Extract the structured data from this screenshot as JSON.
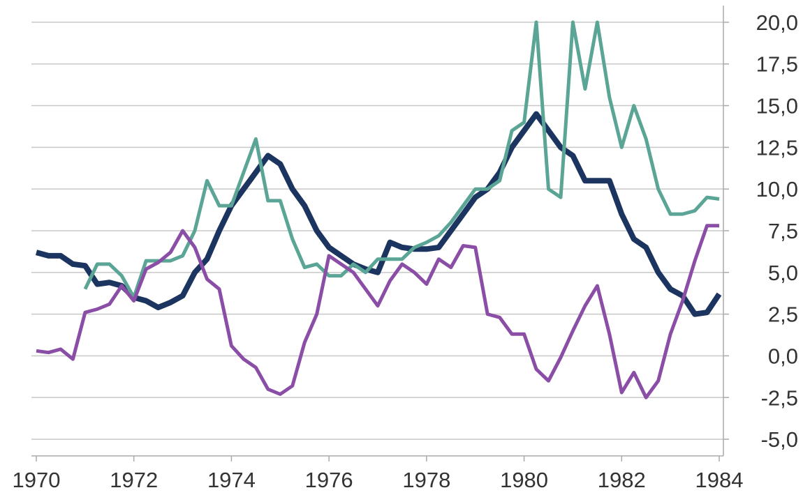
{
  "chart_data": {
    "type": "line",
    "x": [
      1970,
      1970.25,
      1970.5,
      1970.75,
      1971,
      1971.25,
      1971.5,
      1971.75,
      1972,
      1972.25,
      1972.5,
      1972.75,
      1973,
      1973.25,
      1973.5,
      1973.75,
      1974,
      1974.25,
      1974.5,
      1974.75,
      1975,
      1975.25,
      1975.5,
      1975.75,
      1976,
      1976.25,
      1976.5,
      1976.75,
      1977,
      1977.25,
      1977.5,
      1977.75,
      1978,
      1978.25,
      1978.5,
      1978.75,
      1979,
      1979.25,
      1979.5,
      1979.75,
      1980,
      1980.25,
      1980.5,
      1980.75,
      1981,
      1981.25,
      1981.5,
      1981.75,
      1982,
      1982.25,
      1982.5,
      1982.75,
      1983,
      1983.25,
      1983.5,
      1983.75,
      1984
    ],
    "series": [
      {
        "color": "#1c3560",
        "values": [
          6.2,
          6.0,
          6.0,
          5.5,
          5.4,
          4.3,
          4.4,
          4.2,
          3.5,
          3.3,
          2.9,
          3.2,
          3.6,
          5.0,
          5.8,
          7.5,
          9.0,
          10.0,
          11.0,
          12.0,
          11.5,
          10.0,
          9.0,
          7.5,
          6.5,
          6.0,
          5.5,
          5.2,
          5.0,
          6.8,
          6.5,
          6.4,
          6.4,
          6.5,
          7.5,
          8.5,
          9.5,
          10.0,
          11.0,
          12.5,
          13.5,
          14.5,
          13.5,
          12.5,
          12.0,
          10.5,
          10.5,
          10.5,
          8.5,
          7.0,
          6.5,
          5.0,
          4.0,
          3.6,
          2.5,
          2.6,
          3.7
        ]
      },
      {
        "color": "#5aa595",
        "values": [
          null,
          null,
          null,
          null,
          4.0,
          5.5,
          5.5,
          4.8,
          3.5,
          5.7,
          5.7,
          5.7,
          6.0,
          7.5,
          10.5,
          9.0,
          9.0,
          11.0,
          13.0,
          9.3,
          9.3,
          7.0,
          5.3,
          5.5,
          4.8,
          4.8,
          5.5,
          5.0,
          5.8,
          5.8,
          5.8,
          6.5,
          6.8,
          7.2,
          8.0,
          9.0,
          10.0,
          10.0,
          10.5,
          13.5,
          14.0,
          20.0,
          10.0,
          9.5,
          20.0,
          16.0,
          20.0,
          15.5,
          12.5,
          15.0,
          13.0,
          10.0,
          8.5,
          8.5,
          8.7,
          9.5,
          9.4
        ]
      },
      {
        "color": "#8b4ea6",
        "values": [
          0.3,
          0.2,
          0.4,
          -0.2,
          2.6,
          2.8,
          3.1,
          4.2,
          3.3,
          5.2,
          5.6,
          6.2,
          7.5,
          6.5,
          4.6,
          4.0,
          0.6,
          -0.2,
          -0.7,
          -2.0,
          -2.3,
          -1.8,
          0.8,
          2.5,
          6.0,
          5.5,
          5.0,
          4.0,
          3.0,
          4.5,
          5.5,
          5.0,
          4.3,
          5.8,
          5.3,
          6.6,
          6.5,
          2.5,
          2.3,
          1.3,
          1.3,
          -0.8,
          -1.5,
          -0.1,
          1.5,
          3.0,
          4.2,
          1.3,
          -2.2,
          -1.0,
          -2.5,
          -1.5,
          1.3,
          3.3,
          5.7,
          7.8,
          7.8
        ]
      }
    ],
    "xlim": [
      1970,
      1984
    ],
    "xticks": [
      1970,
      1972,
      1974,
      1976,
      1978,
      1980,
      1982,
      1984
    ],
    "ylim": [
      -6,
      21
    ],
    "yticks": [
      {
        "value": -5,
        "label": "-5,0"
      },
      {
        "value": -2.5,
        "label": "-2,5"
      },
      {
        "value": 0,
        "label": "0,0"
      },
      {
        "value": 2.5,
        "label": "2,5"
      },
      {
        "value": 5,
        "label": "5,0"
      },
      {
        "value": 7.5,
        "label": "7,5"
      },
      {
        "value": 10,
        "label": "10,0"
      },
      {
        "value": 12.5,
        "label": "12,5"
      },
      {
        "value": 15,
        "label": "15,0"
      },
      {
        "value": 17.5,
        "label": "17,5"
      },
      {
        "value": 20,
        "label": "20,0"
      }
    ],
    "grid": true,
    "y_axis_side": "right"
  }
}
